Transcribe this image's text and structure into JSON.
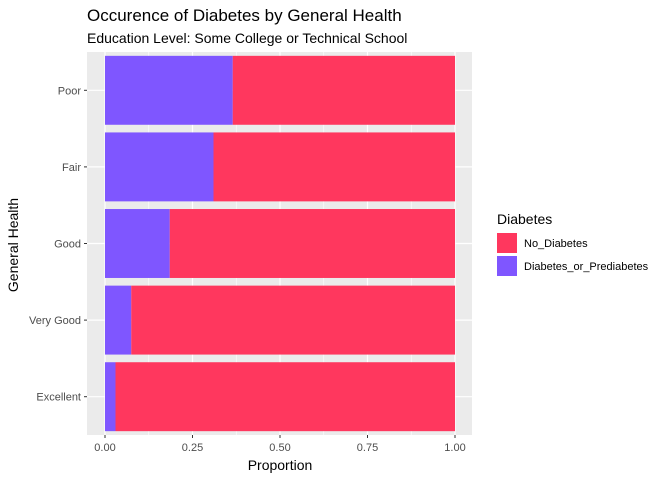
{
  "chart_data": {
    "type": "bar",
    "orientation": "horizontal",
    "stacked": true,
    "title": "Occurence of Diabetes by General Health",
    "subtitle": "Education Level: Some College or Technical School",
    "xlabel": "Proportion",
    "ylabel": "General Health",
    "xlim": [
      0,
      1
    ],
    "xticks": [
      0,
      0.25,
      0.5,
      0.75,
      1
    ],
    "xtick_labels": [
      "0.00",
      "0.25",
      "0.50",
      "0.75",
      "1.00"
    ],
    "categories": [
      "Excellent",
      "Very Good",
      "Good",
      "Fair",
      "Poor"
    ],
    "series": [
      {
        "name": "Diabetes_or_Prediabetes",
        "color": "#7f56ff",
        "values": [
          0.03,
          0.075,
          0.185,
          0.31,
          0.365
        ]
      },
      {
        "name": "No_Diabetes",
        "color": "#ff375e",
        "values": [
          0.97,
          0.925,
          0.815,
          0.69,
          0.635
        ]
      }
    ],
    "legend": {
      "title": "Diabetes",
      "placement": "right",
      "order": [
        "No_Diabetes",
        "Diabetes_or_Prediabetes"
      ]
    },
    "grid": true,
    "panel_background": "#ebebeb",
    "grid_color": "#ffffff"
  }
}
